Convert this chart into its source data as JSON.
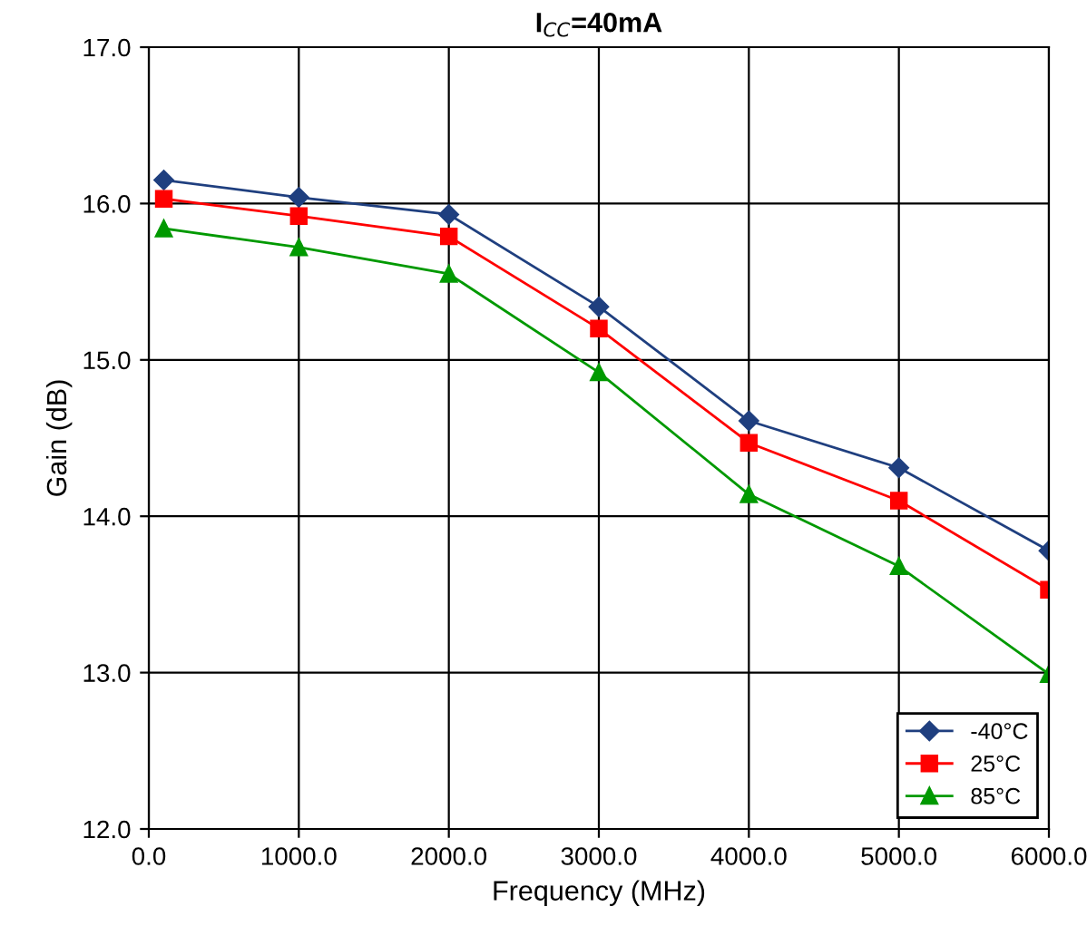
{
  "chart_data": {
    "type": "line",
    "title": "I$_{CC}$=40mA",
    "xlabel": "Frequency (MHz)",
    "ylabel": "Gain (dB)",
    "x": [
      100,
      1000,
      2000,
      3000,
      4000,
      5000,
      6000
    ],
    "series": [
      {
        "name": "-40°C",
        "color": "#1f3f7f",
        "marker": "diamond",
        "values": [
          16.15,
          16.04,
          15.93,
          15.34,
          14.61,
          14.31,
          13.78
        ]
      },
      {
        "name": "25°C",
        "color": "#ff0000",
        "marker": "square",
        "values": [
          16.03,
          15.92,
          15.79,
          15.2,
          14.47,
          14.1,
          13.53
        ]
      },
      {
        "name": "85°C",
        "color": "#009900",
        "marker": "triangle",
        "values": [
          15.84,
          15.72,
          15.55,
          14.92,
          14.14,
          13.68,
          12.99
        ]
      }
    ],
    "xlim": [
      0,
      6000
    ],
    "ylim": [
      12,
      17
    ],
    "xticks": [
      {
        "value": 0,
        "label": "0.0"
      },
      {
        "value": 1000,
        "label": "1000.0"
      },
      {
        "value": 2000,
        "label": "2000.0"
      },
      {
        "value": 3000,
        "label": "3000.0"
      },
      {
        "value": 4000,
        "label": "4000.0"
      },
      {
        "value": 5000,
        "label": "5000.0"
      },
      {
        "value": 6000,
        "label": "6000.0"
      }
    ],
    "yticks": [
      {
        "value": 12,
        "label": "12.0"
      },
      {
        "value": 13,
        "label": "13.0"
      },
      {
        "value": 14,
        "label": "14.0"
      },
      {
        "value": 15,
        "label": "15.0"
      },
      {
        "value": 16,
        "label": "16.0"
      },
      {
        "value": 17,
        "label": "17.0"
      }
    ],
    "grid": true,
    "legend": "bottom right",
    "line_style": "solid"
  }
}
